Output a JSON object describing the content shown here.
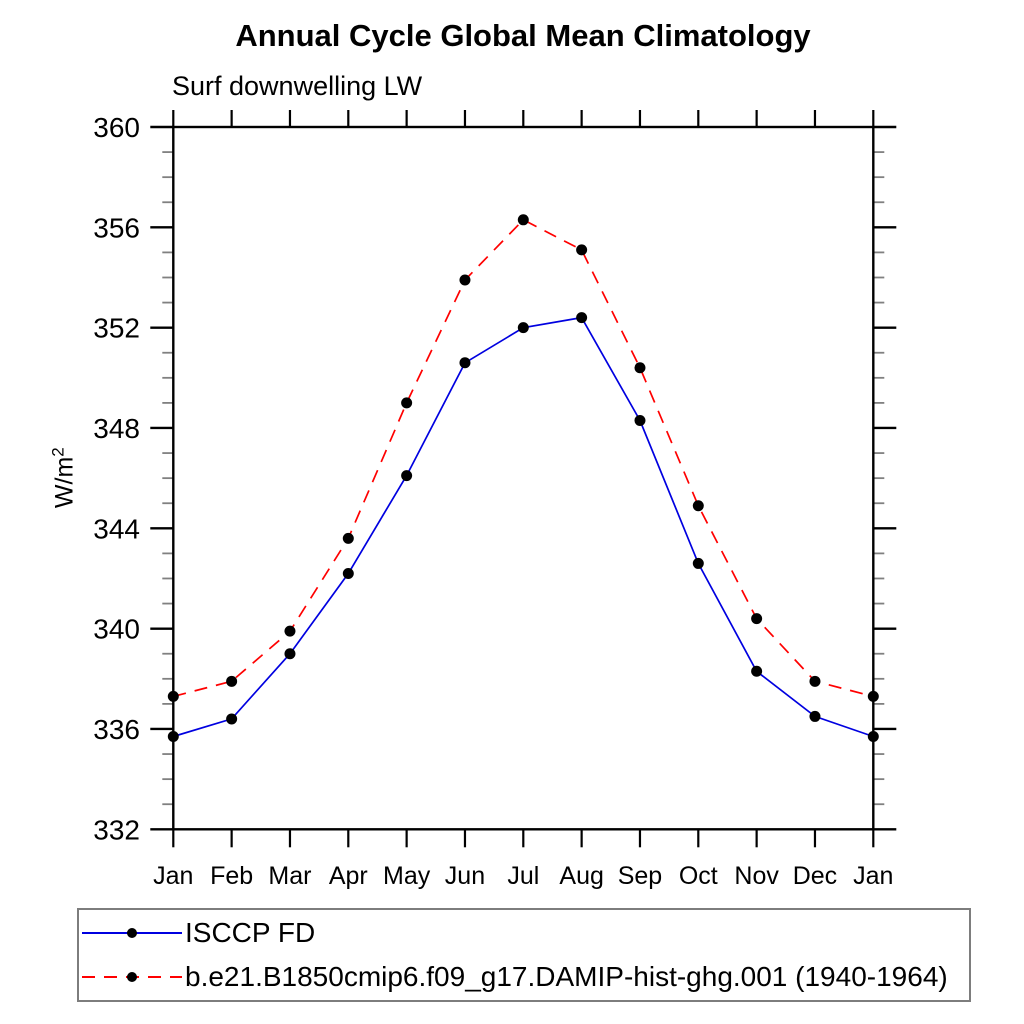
{
  "header": {
    "title": "Annual Cycle Global Mean Climatology",
    "subtitle": "Surf downwelling LW"
  },
  "y_axis": {
    "label_base": "W/m",
    "label_sup": "2"
  },
  "colors": {
    "series1_line": "#0000e0",
    "series2_line": "#ff0000",
    "marker": "#000000",
    "axis": "#000000",
    "minor_tick": "#808080",
    "legend_border": "#7d7d7d",
    "text": "#000000"
  },
  "chart_data": {
    "type": "line",
    "title": "Annual Cycle Global Mean Climatology",
    "subtitle": "Surf downwelling LW",
    "xlabel": "",
    "ylabel": "W/m²",
    "x_categories": [
      "Jan",
      "Feb",
      "Mar",
      "Apr",
      "May",
      "Jun",
      "Jul",
      "Aug",
      "Sep",
      "Oct",
      "Nov",
      "Dec",
      "Jan"
    ],
    "ylim": [
      332,
      360
    ],
    "yticks": [
      332,
      336,
      340,
      344,
      348,
      352,
      356,
      360
    ],
    "ytick_interval": 4,
    "yminor_interval": 1,
    "grid": false,
    "legend_position": "bottom-left-box",
    "series": [
      {
        "name": "ISCCP FD",
        "color": "#0000e0",
        "line_style": "solid",
        "marker": "filled-circle",
        "values": [
          335.7,
          336.4,
          339.0,
          342.2,
          346.1,
          350.6,
          352.0,
          352.4,
          348.3,
          342.6,
          338.3,
          336.5,
          335.7
        ]
      },
      {
        "name": "b.e21.B1850cmip6.f09_g17.DAMIP-hist-ghg.001 (1940-1964)",
        "color": "#ff0000",
        "line_style": "dashed",
        "marker": "filled-circle",
        "values": [
          337.3,
          337.9,
          339.9,
          343.6,
          349.0,
          353.9,
          356.3,
          355.1,
          350.4,
          344.9,
          340.4,
          337.9,
          337.3
        ]
      }
    ]
  },
  "legend": {
    "items": [
      {
        "label": "ISCCP FD"
      },
      {
        "label": "b.e21.B1850cmip6.f09_g17.DAMIP-hist-ghg.001 (1940-1964)"
      }
    ]
  }
}
